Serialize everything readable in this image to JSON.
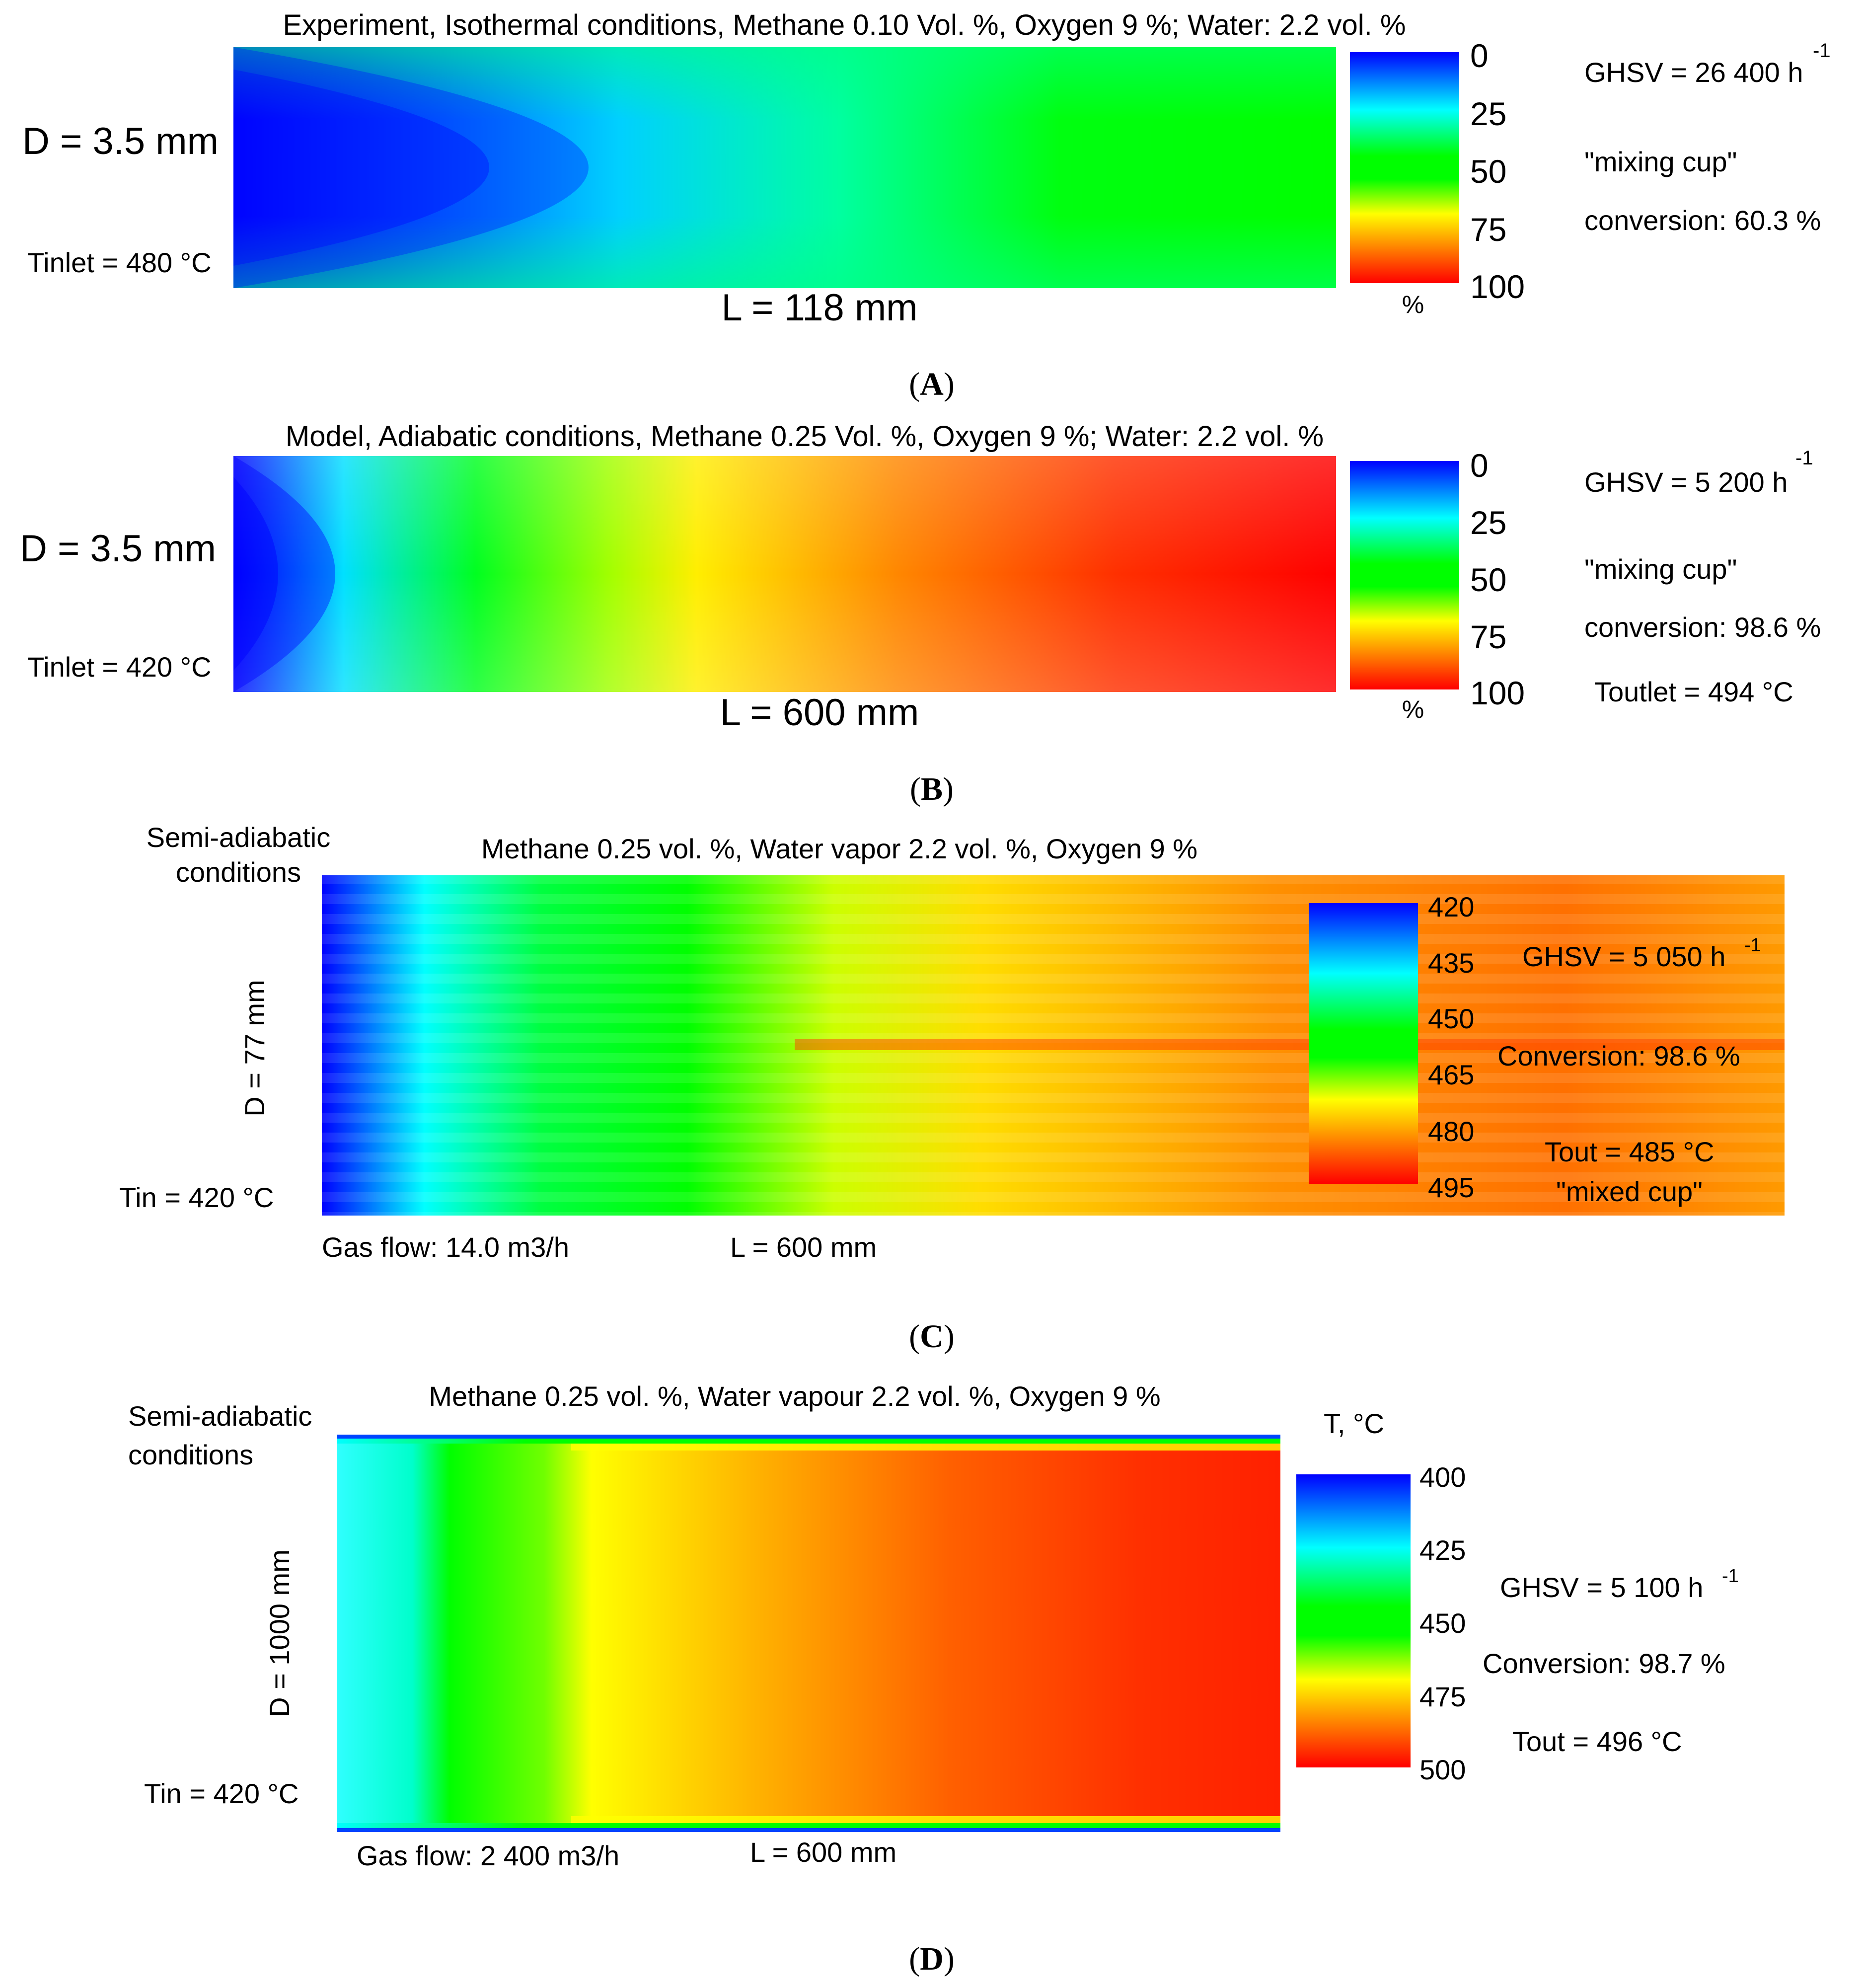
{
  "panels": {
    "A": {
      "label": "A",
      "title": "Experiment, Isothermal conditions, Methane 0.10 Vol. %, Oxygen 9 %; Water: 2.2 vol. %",
      "diameter": "D = 3.5 mm",
      "inlet": "Tinlet = 480 °C",
      "length": "L = 118 mm",
      "colorbar": {
        "ticks": [
          "0",
          "25",
          "50",
          "75",
          "100"
        ],
        "unit": "%"
      },
      "info": {
        "ghsv": "GHSV = 26 400 h",
        "ghsv_sup": "-1",
        "mixing": "\"mixing cup\"",
        "conversion": "conversion: 60.3 %"
      }
    },
    "B": {
      "label": "B",
      "title": "Model, Adiabatic conditions, Methane 0.25 Vol. %, Oxygen 9 %; Water: 2.2 vol. %",
      "diameter": "D = 3.5 mm",
      "inlet": "Tinlet = 420 °C",
      "length": "L = 600 mm",
      "colorbar": {
        "ticks": [
          "0",
          "25",
          "50",
          "75",
          "100"
        ],
        "unit": "%"
      },
      "info": {
        "ghsv": "GHSV = 5 200 h",
        "ghsv_sup": "-1",
        "mixing": "\"mixing cup\"",
        "conversion": "conversion: 98.6 %",
        "outlet": "Toutlet = 494 °C"
      }
    },
    "C": {
      "label": "C",
      "conditions": [
        "Semi-adiabatic",
        "conditions"
      ],
      "title": "Methane 0.25 vol. %, Water vapor 2.2 vol. %, Oxygen 9 %",
      "diameter": "D = 77 mm",
      "inlet": "Tin = 420 °C",
      "gasflow": "Gas flow: 14.0 m3/h",
      "length": "L = 600 mm",
      "colorbar": {
        "ticks": [
          "420",
          "435",
          "450",
          "465",
          "480",
          "495"
        ]
      },
      "info": {
        "ghsv": "GHSV = 5 050 h",
        "ghsv_sup": "-1",
        "conversion": "Conversion: 98.6 %",
        "outlet": "Tout = 485 °C",
        "mixed": "\"mixed cup\""
      }
    },
    "D": {
      "label": "D",
      "conditions": [
        "Semi-adiabatic",
        "conditions"
      ],
      "title": "Methane 0.25 vol. %, Water vapour 2.2 vol. %, Oxygen 9 %",
      "diameter": "D = 1000 mm",
      "inlet": "Tin = 420 °C",
      "gasflow": "Gas flow: 2 400 m3/h",
      "length": "L = 600 mm",
      "colorbar": {
        "title": "T, °C",
        "ticks": [
          "400",
          "425",
          "450",
          "475",
          "500"
        ]
      },
      "info": {
        "ghsv": "GHSV = 5 100 h",
        "ghsv_sup": "-1",
        "conversion": "Conversion: 98.7 %",
        "outlet": "Tout = 496 °C"
      }
    }
  },
  "colors": {
    "blue": "#0000ff",
    "cyan": "#00ffff",
    "green": "#00ff00",
    "yellow": "#ffff00",
    "red": "#ff0000"
  }
}
